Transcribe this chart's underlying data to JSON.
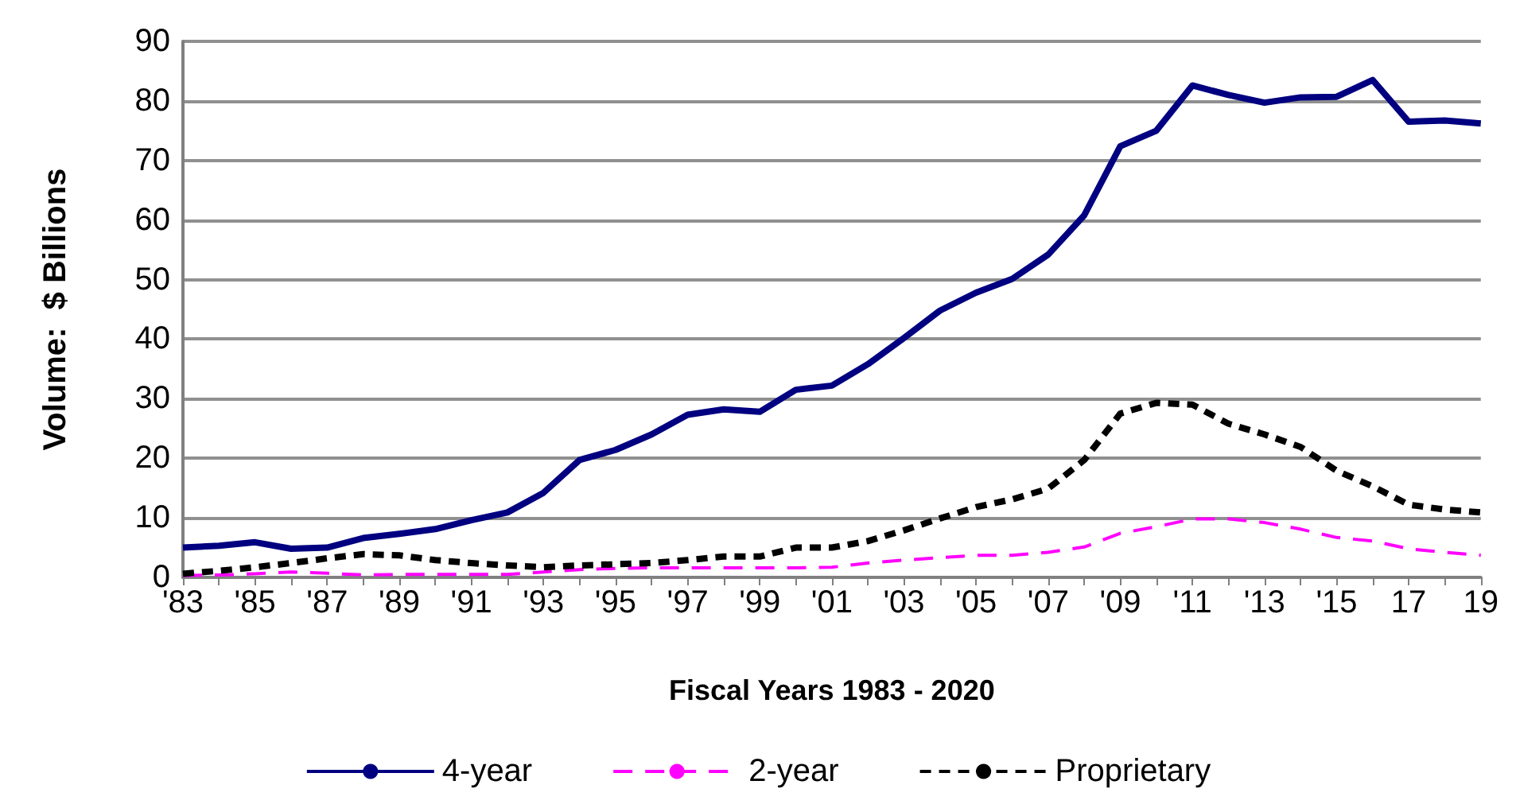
{
  "chart_data": {
    "type": "line",
    "xlabel": "Fiscal Years 1983 - 2020",
    "ylabel": "Volume:  $ Billions",
    "categories": [
      "'83",
      null,
      "'85",
      null,
      "'87",
      null,
      "'89",
      null,
      "'91",
      null,
      "'93",
      null,
      "'95",
      null,
      "'97",
      null,
      "'99",
      null,
      "'01",
      null,
      "'03",
      null,
      "'05",
      null,
      "'07",
      null,
      "'09",
      null,
      "'11",
      null,
      "'13",
      null,
      "'15",
      null,
      "17",
      null,
      "19"
    ],
    "series": [
      {
        "name": "4-year",
        "color": "#000080",
        "line_style": "solid",
        "values": [
          5.0,
          5.3,
          5.9,
          4.8,
          5.0,
          6.6,
          7.3,
          8.1,
          9.6,
          10.9,
          14.2,
          19.7,
          21.4,
          24.0,
          27.3,
          28.2,
          27.8,
          31.5,
          32.2,
          35.8,
          40.2,
          44.8,
          47.8,
          50.1,
          54.2,
          60.8,
          72.4,
          75.0,
          82.6,
          81.0,
          79.7,
          80.6,
          80.7,
          83.5,
          76.5,
          76.7,
          76.2
        ]
      },
      {
        "name": "2-year",
        "color": "#ff00ff",
        "line_style": "dashed",
        "values": [
          0.3,
          0.4,
          0.6,
          0.9,
          0.7,
          0.4,
          0.5,
          0.5,
          0.5,
          0.5,
          0.9,
          1.3,
          1.5,
          1.6,
          1.6,
          1.6,
          1.6,
          1.6,
          1.7,
          2.4,
          2.9,
          3.3,
          3.7,
          3.7,
          4.2,
          5.1,
          7.4,
          8.5,
          9.8,
          9.8,
          9.2,
          8.1,
          6.7,
          6.1,
          4.8,
          4.2,
          3.7
        ]
      },
      {
        "name": "Proprietary",
        "color": "#000000",
        "line_style": "dotted",
        "values": [
          0.6,
          1.1,
          1.7,
          2.4,
          3.2,
          3.9,
          3.7,
          2.9,
          2.4,
          2.0,
          1.7,
          2.0,
          2.2,
          2.4,
          2.9,
          3.5,
          3.5,
          5.0,
          5.0,
          6.1,
          7.9,
          9.9,
          11.8,
          13.1,
          14.9,
          19.7,
          27.5,
          29.3,
          29.0,
          25.8,
          24.0,
          21.9,
          17.9,
          15.3,
          12.2,
          11.4,
          10.9
        ]
      }
    ],
    "ylim": [
      0,
      90
    ],
    "yticks": [
      0,
      10,
      20,
      30,
      40,
      50,
      60,
      70,
      80,
      90
    ],
    "grid": "y",
    "legend": "bottom",
    "marker": "none"
  }
}
